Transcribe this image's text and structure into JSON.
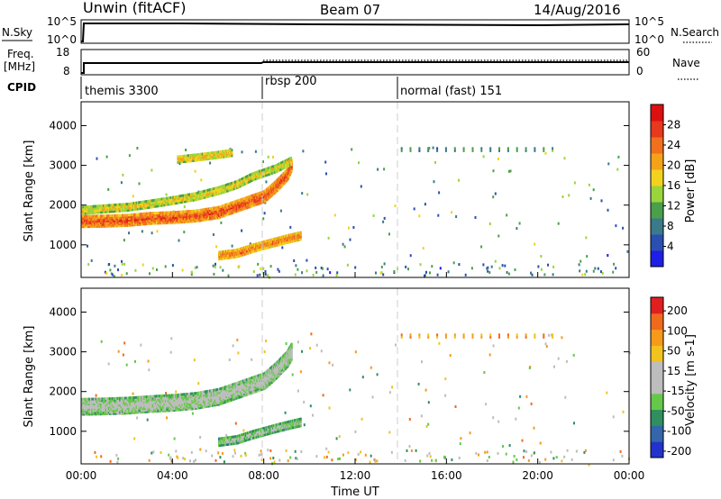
{
  "header": {
    "station": "Unwin (fitACF)",
    "beam": "Beam 07",
    "date": "14/Aug/2016"
  },
  "panels": {
    "nsky": {
      "label": "N.Sky",
      "left_ticks": [
        "10^5",
        "10^0"
      ],
      "right_ticks": [
        "10^5",
        "10^0"
      ],
      "right_label": "N.Search"
    },
    "freq": {
      "label_line1": "Freq.",
      "label_line2": "[MHz]",
      "left_ticks": [
        "18",
        "8"
      ],
      "right_ticks": [
        "60",
        "0"
      ],
      "right_label": "Nave"
    },
    "cpid": {
      "label": "CPID",
      "segments": [
        "themis 3300",
        "rbsp 200",
        "normal (fast) 151"
      ]
    }
  },
  "chart_data": [
    {
      "type": "heatmap",
      "name": "power",
      "ylabel": "Slant Range [km]",
      "xlabel": "",
      "xlim": [
        0,
        24
      ],
      "ylim": [
        180,
        4600
      ],
      "y_ticks": [
        "1000",
        "2000",
        "3000",
        "4000"
      ],
      "colorbar": {
        "label": "Power [dB]",
        "ticks": [
          "4",
          "8",
          "12",
          "16",
          "20",
          "24",
          "28"
        ],
        "colors": [
          "#1e1ee6",
          "#2a4fb0",
          "#3a7a8a",
          "#4aa04a",
          "#9ad53c",
          "#f2d21e",
          "#f5a21a",
          "#f0701e",
          "#e8381e",
          "#dd1010"
        ]
      },
      "features": [
        {
          "x": [
            0,
            1,
            2,
            3,
            4,
            5,
            6,
            7,
            8,
            8.5,
            9,
            9.2
          ],
          "y": [
            1620,
            1630,
            1650,
            1700,
            1720,
            1760,
            1850,
            2050,
            2250,
            2500,
            2800,
            3050
          ],
          "level": 0.85,
          "width": 260
        },
        {
          "x": [
            0,
            1,
            2,
            3,
            4,
            5,
            6,
            6.8,
            7.5,
            8.5,
            9.2
          ],
          "y": [
            1900,
            1940,
            1980,
            2060,
            2150,
            2250,
            2400,
            2550,
            2750,
            2950,
            3150
          ],
          "level": 0.6,
          "width": 160
        },
        {
          "x": [
            6.0,
            6.8,
            7.5,
            8.2,
            8.8,
            9.3,
            9.6
          ],
          "y": [
            760,
            820,
            950,
            1060,
            1150,
            1220,
            1260
          ],
          "level": 0.78,
          "width": 170
        },
        {
          "x": [
            4.2,
            5.0,
            6.0,
            6.6
          ],
          "y": [
            3180,
            3230,
            3300,
            3350
          ],
          "level": 0.65,
          "width": 140
        },
        {
          "x": [
            14.0,
            21.0
          ],
          "y": [
            3430,
            3430
          ],
          "level": 0.45,
          "width": 60
        }
      ]
    },
    {
      "type": "heatmap",
      "name": "velocity",
      "ylabel": "Slant Range [km]",
      "xlabel": "Time UT",
      "xlim": [
        0,
        24
      ],
      "ylim": [
        180,
        4600
      ],
      "x_ticks": [
        "00:00",
        "04:00",
        "08:00",
        "12:00",
        "16:00",
        "20:00",
        "00:00"
      ],
      "y_ticks": [
        "1000",
        "2000",
        "3000",
        "4000"
      ],
      "colorbar": {
        "label": "Velocity [m s-1]",
        "ticks": [
          "200",
          "100",
          "50",
          "15",
          "-15",
          "-50",
          "-100",
          "-200"
        ],
        "colors": [
          "#2233cc",
          "#3366aa",
          "#2f8f5f",
          "#66c84a",
          "#bdbdbd",
          "#bdbdbd",
          "#f2c21e",
          "#f59a1a",
          "#f06a1e",
          "#e02020"
        ]
      },
      "features": [
        {
          "x": [
            0,
            1,
            2,
            3,
            4,
            5,
            6,
            7,
            8,
            8.5,
            9,
            9.2
          ],
          "y": [
            1650,
            1660,
            1680,
            1720,
            1750,
            1800,
            1900,
            2100,
            2300,
            2550,
            2850,
            3050
          ],
          "level": 0.5,
          "width": 380
        },
        {
          "x": [
            6.0,
            6.8,
            7.5,
            8.2,
            8.8,
            9.3,
            9.6
          ],
          "y": [
            760,
            820,
            950,
            1060,
            1150,
            1220,
            1260
          ],
          "level": 0.45,
          "width": 170
        },
        {
          "x": [
            14.0,
            21.0
          ],
          "y": [
            3430,
            3430
          ],
          "level": 0.93,
          "width": 60
        }
      ]
    }
  ],
  "time_axis": {
    "label": "Time UT",
    "ticks": [
      "00:00",
      "04:00",
      "08:00",
      "12:00",
      "16:00",
      "20:00",
      "00:00"
    ]
  }
}
